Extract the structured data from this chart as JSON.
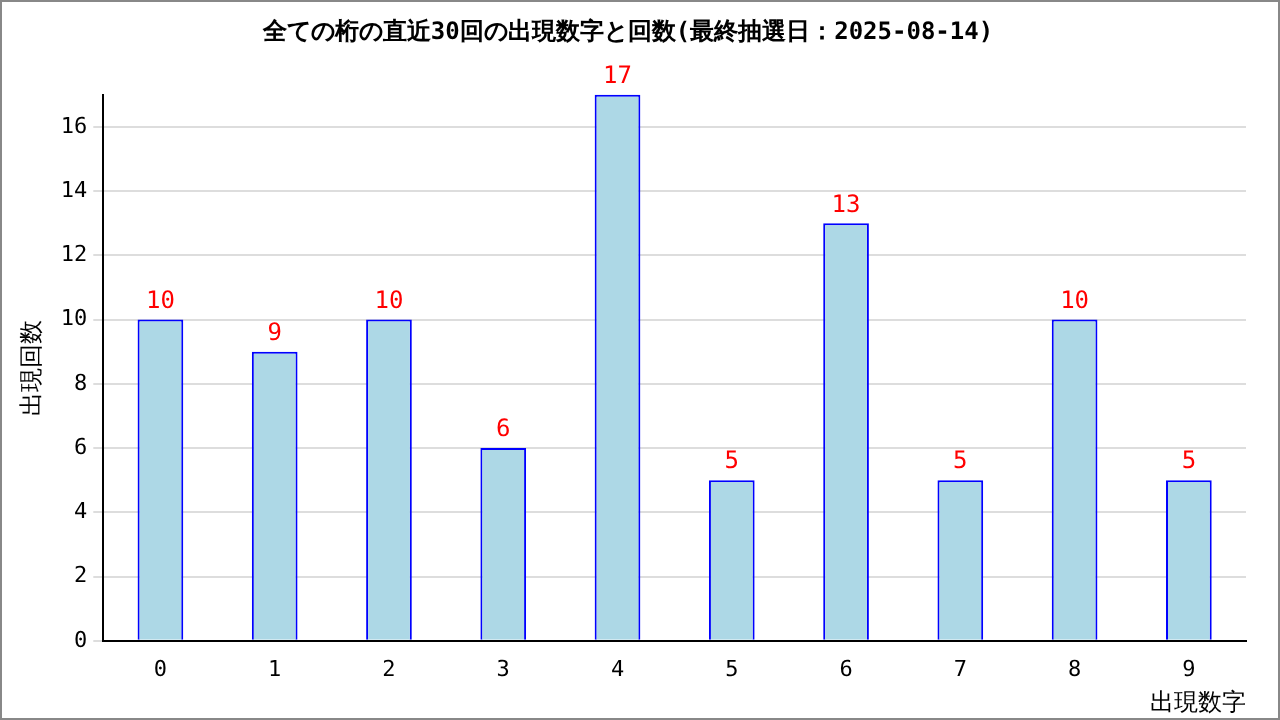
{
  "chart_data": {
    "type": "bar",
    "title": "全ての桁の直近30回の出現数字と回数(最終抽選日：2025-08-14)",
    "xlabel": "出現数字",
    "ylabel": "出現回数",
    "categories": [
      "0",
      "1",
      "2",
      "3",
      "4",
      "5",
      "6",
      "7",
      "8",
      "9"
    ],
    "series": [
      {
        "color": "#add8e6",
        "values": [
          10,
          9,
          10,
          6,
          17,
          5,
          13,
          5,
          10,
          5
        ]
      }
    ],
    "ylim": [
      0,
      17
    ],
    "yticks": [
      0,
      2,
      4,
      6,
      8,
      10,
      12,
      14,
      16
    ],
    "grid": "y",
    "legend": false,
    "data_labels": true
  }
}
